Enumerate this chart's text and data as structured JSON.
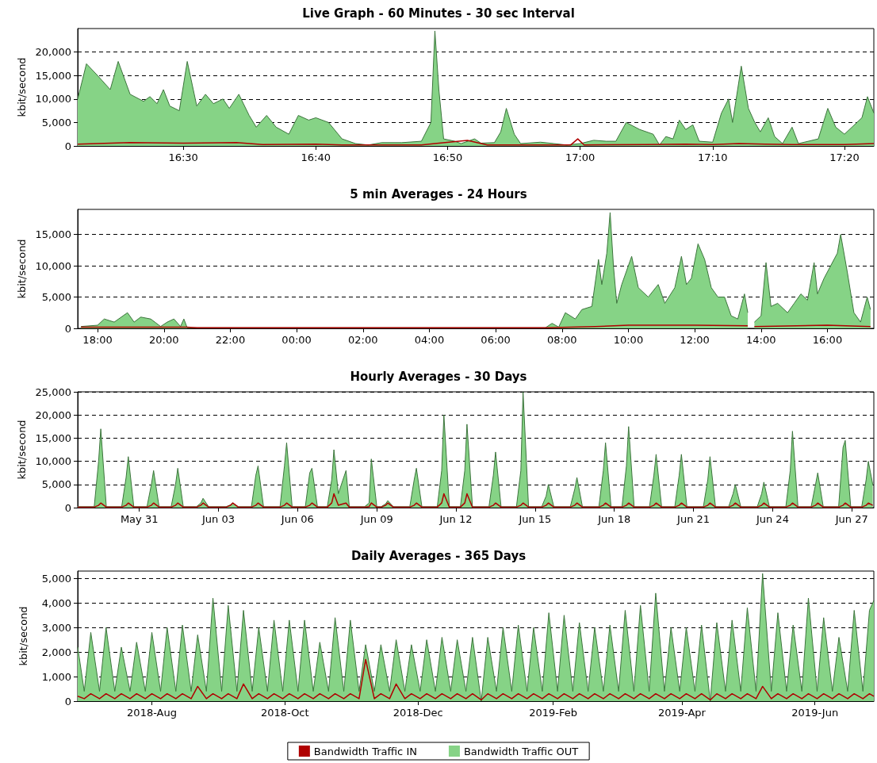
{
  "chart_data": [
    {
      "type": "area",
      "title": "Live Graph - 60 Minutes - 30 sec Interval",
      "ylabel": "kbit/second",
      "marker": "none",
      "grid": "y",
      "xlim": [
        16.367,
        17.37
      ],
      "xticks": [
        {
          "value": 16.5,
          "label": "16:30"
        },
        {
          "value": 16.667,
          "label": "16:40"
        },
        {
          "value": 16.833,
          "label": "16:50"
        },
        {
          "value": 17,
          "label": "17:00"
        },
        {
          "value": 17.167,
          "label": "17:10"
        },
        {
          "value": 17.333,
          "label": "17:20"
        }
      ],
      "ylim": [
        0,
        25000
      ],
      "yticks": [
        {
          "value": 0,
          "label": "0"
        },
        {
          "value": 5000,
          "label": "5,000"
        },
        {
          "value": 10000,
          "label": "10,000"
        },
        {
          "value": 15000,
          "label": "15,000"
        },
        {
          "value": 20000,
          "label": "20,000"
        }
      ],
      "series": [
        {
          "color": "#86d386",
          "x": [
            16.367,
            16.378,
            16.392,
            16.408,
            16.418,
            16.433,
            16.45,
            16.458,
            16.467,
            16.475,
            16.483,
            16.495,
            16.505,
            16.517,
            16.528,
            16.538,
            16.55,
            16.558,
            16.57,
            16.583,
            16.592,
            16.605,
            16.617,
            16.633,
            16.645,
            16.658,
            16.667,
            16.683,
            16.7,
            16.717,
            16.733,
            16.75,
            16.775,
            16.8,
            16.812,
            16.817,
            16.822,
            16.828,
            16.842,
            16.85,
            16.867,
            16.875,
            16.892,
            16.9,
            16.907,
            16.917,
            16.925,
            16.95,
            16.967,
            16.983,
            17.0,
            17.017,
            17.033,
            17.045,
            17.058,
            17.075,
            17.092,
            17.1,
            17.108,
            17.117,
            17.125,
            17.133,
            17.142,
            17.15,
            17.167,
            17.178,
            17.187,
            17.192,
            17.203,
            17.212,
            17.22,
            17.227,
            17.237,
            17.245,
            17.255,
            17.267,
            17.275,
            17.3,
            17.312,
            17.322,
            17.333,
            17.355,
            17.362,
            17.37
          ],
          "values": [
            10000,
            17500,
            15000,
            12000,
            18000,
            11000,
            9500,
            10500,
            9000,
            12000,
            8500,
            7500,
            18000,
            8500,
            11000,
            9000,
            10000,
            8000,
            11000,
            6500,
            4000,
            6500,
            4000,
            2500,
            6500,
            5500,
            6000,
            5000,
            1500,
            500,
            200,
            700,
            700,
            1000,
            5000,
            24500,
            12000,
            1500,
            1000,
            500,
            1500,
            600,
            700,
            3000,
            8000,
            2500,
            500,
            800,
            500,
            200,
            500,
            1200,
            1000,
            1000,
            5000,
            3500,
            2500,
            200,
            2000,
            1500,
            5500,
            3500,
            4500,
            1000,
            800,
            7000,
            10000,
            5000,
            17000,
            8000,
            5000,
            3000,
            6000,
            2000,
            500,
            4000,
            500,
            1500,
            8000,
            4000,
            2500,
            6000,
            10500,
            7000
          ]
        },
        {
          "type": "line",
          "color": "#b00000",
          "x": [
            16.367,
            16.433,
            16.5,
            16.567,
            16.6,
            16.667,
            16.7,
            16.8,
            16.817,
            16.858,
            16.883,
            16.988,
            16.997,
            17.005,
            17.083,
            17.133,
            17.167,
            17.2,
            17.233,
            17.267,
            17.333,
            17.37
          ],
          "values": [
            400,
            700,
            600,
            700,
            300,
            400,
            200,
            200,
            500,
            1200,
            200,
            200,
            1500,
            200,
            300,
            400,
            300,
            500,
            400,
            300,
            300,
            500
          ]
        }
      ]
    },
    {
      "type": "area",
      "title": "5 min Averages - 24 Hours",
      "ylabel": "kbit/second",
      "marker": "none",
      "grid": "y",
      "xlim": [
        "--06-26T17:24",
        "--06-27T17:24"
      ],
      "xticks": [
        {
          "value": "--06-26T18:00",
          "label": "18:00"
        },
        {
          "value": "--06-26T20:00",
          "label": "20:00"
        },
        {
          "value": "--06-26T22:00",
          "label": "22:00"
        },
        {
          "value": "--06-27T00:00",
          "label": "00:00"
        },
        {
          "value": "--06-27T02:00",
          "label": "02:00"
        },
        {
          "value": "--06-27T04:00",
          "label": "04:00"
        },
        {
          "value": "--06-27T06:00",
          "label": "06:00"
        },
        {
          "value": "--06-27T08:00",
          "label": "08:00"
        },
        {
          "value": "--06-27T10:00",
          "label": "10:00"
        },
        {
          "value": "--06-27T12:00",
          "label": "12:00"
        },
        {
          "value": "--06-27T14:00",
          "label": "14:00"
        },
        {
          "value": "--06-27T16:00",
          "label": "16:00"
        }
      ],
      "ylim": [
        0,
        19000
      ],
      "yticks": [
        {
          "value": 0,
          "label": "0"
        },
        {
          "value": 5000,
          "label": "5,000"
        },
        {
          "value": 10000,
          "label": "10,000"
        },
        {
          "value": 15000,
          "label": "15,000"
        }
      ],
      "series": [
        {
          "color": "#86d386",
          "x": [
            "--06-26T17:30",
            "--06-26T18:00",
            "--06-26T18:12",
            "--06-26T18:30",
            "--06-26T18:54",
            "--06-26T19:06",
            "--06-26T19:18",
            "--06-26T19:36",
            "--06-26T19:54",
            "--06-26T20:06",
            "--06-26T20:18",
            "--06-26T20:30",
            "--06-26T20:36",
            "--06-26T20:42",
            "--06-26T22:00",
            "--06-27T02:00",
            "--06-27T06:00",
            "--06-27T07:30",
            "--06-27T07:42",
            "--06-27T07:54",
            "--06-27T08:06",
            "--06-27T08:24",
            "--06-27T08:36",
            "--06-27T08:54",
            "--06-27T09:06",
            "--06-27T09:12",
            "--06-27T09:21",
            "--06-27T09:27",
            "--06-27T09:33",
            "--06-27T09:39",
            "--06-27T09:48",
            "--06-27T10:06",
            "--06-27T10:18",
            "--06-27T10:36",
            "--06-27T10:54",
            "--06-27T11:06",
            "--06-27T11:24",
            "--06-27T11:36",
            "--06-27T11:45",
            "--06-27T11:54",
            "--06-27T12:06",
            "--06-27T12:18",
            "--06-27T12:30",
            "--06-27T12:42",
            "--06-27T12:54",
            "--06-27T13:06",
            "--06-27T13:18",
            "--06-27T13:30",
            "--06-27T13:36",
            "--06-27T13:39",
            "--06-27T13:48",
            "--06-27T14:00",
            "--06-27T14:09",
            "--06-27T14:18",
            "--06-27T14:30",
            "--06-27T14:48",
            "--06-27T15:00",
            "--06-27T15:12",
            "--06-27T15:24",
            "--06-27T15:36",
            "--06-27T15:42",
            "--06-27T15:54",
            "--06-27T16:06",
            "--06-27T16:18",
            "--06-27T16:24",
            "--06-27T16:36",
            "--06-27T16:48",
            "--06-27T17:00",
            "--06-27T17:12",
            "--06-27T17:18"
          ],
          "values": [
            300,
            500,
            1500,
            1000,
            2500,
            1000,
            1800,
            1500,
            300,
            1000,
            1500,
            300,
            1500,
            100,
            100,
            100,
            100,
            100,
            800,
            200,
            2500,
            1500,
            3000,
            3500,
            11000,
            7000,
            12000,
            18500,
            10000,
            4000,
            7000,
            11500,
            6500,
            5000,
            7000,
            4000,
            6500,
            11500,
            7000,
            8000,
            13500,
            11000,
            6500,
            5000,
            5000,
            2000,
            1500,
            5500,
            2500,
            null,
            1000,
            2000,
            10500,
            3500,
            4000,
            2500,
            4000,
            5500,
            4500,
            10500,
            5500,
            8000,
            10000,
            12000,
            15000,
            9000,
            2500,
            1000,
            5000,
            3000
          ]
        },
        {
          "type": "line",
          "color": "#b00000",
          "x": [
            "--06-26T17:30",
            "--06-26T20:42",
            "--06-26T21:00",
            "--06-27T07:30",
            "--06-27T09:00",
            "--06-27T10:00",
            "--06-27T12:00",
            "--06-27T13:36",
            "--06-27T13:39",
            "--06-27T13:48",
            "--06-27T16:00",
            "--06-27T17:18"
          ],
          "values": [
            200,
            200,
            100,
            100,
            300,
            500,
            500,
            400,
            null,
            300,
            500,
            300
          ]
        }
      ]
    },
    {
      "type": "area",
      "title": "Hourly Averages - 30 Days",
      "ylabel": "kbit/second",
      "marker": "none",
      "grid": "y",
      "xlim": [
        "--05-28T16:00",
        "--06-27T20:00"
      ],
      "xticks": [
        {
          "value": "--05-31",
          "label": "May 31"
        },
        {
          "value": "--06-03",
          "label": "Jun 03"
        },
        {
          "value": "--06-06",
          "label": "Jun 06"
        },
        {
          "value": "--06-09",
          "label": "Jun 09"
        },
        {
          "value": "--06-12",
          "label": "Jun 12"
        },
        {
          "value": "--06-15",
          "label": "Jun 15"
        },
        {
          "value": "--06-18",
          "label": "Jun 18"
        },
        {
          "value": "--06-21",
          "label": "Jun 21"
        },
        {
          "value": "--06-24",
          "label": "Jun 24"
        },
        {
          "value": "--06-27",
          "label": "Jun 27"
        }
      ],
      "ylim": [
        0,
        25000
      ],
      "yticks": [
        {
          "value": 0,
          "label": "0"
        },
        {
          "value": 5000,
          "label": "5,000"
        },
        {
          "value": 10000,
          "label": "10,000"
        },
        {
          "value": 15000,
          "label": "15,000"
        },
        {
          "value": 20000,
          "label": "20,000"
        },
        {
          "value": 25000,
          "label": "25,000"
        }
      ],
      "x": [
        "--05-28T16:00",
        "--05-29T07:00",
        "--05-29T11:00",
        "--05-29T13:00",
        "--05-29T18:00",
        "--05-30T08:00",
        "--05-30T12:00",
        "--05-30T14:00",
        "--05-30T19:00",
        "--05-31T07:00",
        "--05-31T11:00",
        "--05-31T13:00",
        "--05-31T18:00",
        "--06-01T05:00",
        "--06-01T09:00",
        "--06-01T11:00",
        "--06-01T16:00",
        "--06-02T04:00",
        "--06-02T08:00",
        "--06-02T10:00",
        "--06-02T15:00",
        "--06-03T07:00",
        "--06-03T11:00",
        "--06-03T13:00",
        "--06-03T18:00",
        "--06-04T06:00",
        "--06-04T10:00",
        "--06-04T12:00",
        "--06-04T17:00",
        "--06-05T08:00",
        "--06-05T12:00",
        "--06-05T14:00",
        "--06-05T19:00",
        "--06-06T07:00",
        "--06-06T11:00",
        "--06-06T13:00",
        "--06-06T18:00",
        "--06-07T03:00",
        "--06-07T07:00",
        "--06-07T09:00",
        "--06-07T13:00",
        "--06-07T20:00",
        "--06-07T23:00",
        "--06-08T13:00",
        "--06-08T17:00",
        "--06-08T19:00",
        "--06-09T00:00",
        "--06-09T04:00",
        "--06-09T08:00",
        "--06-09T10:00",
        "--06-09T15:00",
        "--06-10T06:00",
        "--06-10T10:00",
        "--06-10T12:00",
        "--06-10T17:00",
        "--06-11T07:00",
        "--06-11T11:00",
        "--06-11T13:00",
        "--06-11T18:00",
        "--06-12T04:00",
        "--06-12T08:00",
        "--06-12T10:00",
        "--06-12T15:00",
        "--06-13T06:00",
        "--06-13T10:00",
        "--06-13T12:00",
        "--06-13T17:00",
        "--06-14T07:00",
        "--06-14T11:00",
        "--06-14T13:00",
        "--06-14T18:00",
        "--06-15T06:00",
        "--06-15T10:00",
        "--06-15T12:00",
        "--06-15T17:00",
        "--06-16T08:00",
        "--06-16T12:00",
        "--06-16T14:00",
        "--06-16T19:00",
        "--06-17T10:00",
        "--06-17T14:00",
        "--06-17T16:00",
        "--06-17T21:00",
        "--06-18T07:00",
        "--06-18T11:00",
        "--06-18T13:00",
        "--06-18T18:00",
        "--06-19T08:00",
        "--06-19T12:00",
        "--06-19T14:00",
        "--06-19T19:00",
        "--06-20T07:00",
        "--06-20T11:00",
        "--06-20T13:00",
        "--06-20T18:00",
        "--06-21T09:00",
        "--06-21T13:00",
        "--06-21T15:00",
        "--06-21T20:00",
        "--06-22T08:00",
        "--06-22T12:00",
        "--06-22T14:00",
        "--06-22T19:00",
        "--06-23T10:00",
        "--06-23T14:00",
        "--06-23T16:00",
        "--06-23T21:00",
        "--06-24T12:00",
        "--06-24T16:00",
        "--06-24T18:00",
        "--06-24T23:00",
        "--06-25T11:00",
        "--06-25T15:00",
        "--06-25T17:00",
        "--06-25T22:00",
        "--06-26T12:00",
        "--06-26T16:00",
        "--06-26T18:00",
        "--06-26T23:00",
        "--06-27T09:00",
        "--06-27T13:00",
        "--06-27T15:00",
        "--06-27T19:00"
      ],
      "series": [
        {
          "color": "#86d386",
          "values": [
            200,
            200,
            10000,
            17000,
            200,
            200,
            6500,
            11000,
            200,
            200,
            5000,
            8000,
            200,
            200,
            5000,
            8500,
            200,
            200,
            1000,
            2000,
            200,
            200,
            600,
            1000,
            200,
            200,
            7000,
            9000,
            200,
            200,
            9000,
            14000,
            200,
            200,
            7500,
            8500,
            200,
            200,
            6000,
            12500,
            3000,
            8000,
            200,
            200,
            1000,
            10500,
            200,
            200,
            800,
            1500,
            200,
            200,
            6000,
            8500,
            200,
            200,
            8000,
            20000,
            200,
            200,
            8000,
            18000,
            200,
            200,
            7000,
            12000,
            200,
            200,
            8000,
            25000,
            200,
            200,
            2500,
            5000,
            200,
            200,
            4000,
            6500,
            200,
            200,
            8000,
            14000,
            200,
            200,
            9000,
            17500,
            200,
            200,
            7000,
            11500,
            200,
            200,
            7000,
            11500,
            200,
            200,
            6000,
            11000,
            200,
            200,
            3000,
            5000,
            200,
            200,
            3000,
            5500,
            200,
            200,
            8000,
            16500,
            200,
            200,
            5000,
            7500,
            200,
            200,
            13000,
            14500,
            200,
            200,
            6000,
            10000,
            5000
          ]
        },
        {
          "type": "line",
          "color": "#b00000",
          "values": [
            100,
            100,
            500,
            1000,
            100,
            100,
            500,
            1000,
            100,
            100,
            500,
            1000,
            100,
            100,
            500,
            1000,
            100,
            100,
            500,
            1000,
            100,
            100,
            500,
            1000,
            100,
            100,
            500,
            1000,
            100,
            100,
            500,
            1000,
            100,
            100,
            500,
            1000,
            100,
            100,
            1000,
            3000,
            500,
            1000,
            100,
            100,
            200,
            1000,
            100,
            100,
            500,
            1000,
            100,
            100,
            500,
            1000,
            100,
            100,
            1000,
            3000,
            100,
            100,
            1000,
            3000,
            100,
            100,
            500,
            1000,
            100,
            100,
            500,
            1000,
            100,
            100,
            500,
            1000,
            100,
            100,
            500,
            1000,
            100,
            100,
            500,
            1000,
            100,
            100,
            500,
            1000,
            100,
            100,
            500,
            1000,
            100,
            100,
            500,
            1000,
            100,
            100,
            500,
            1000,
            100,
            100,
            500,
            1000,
            100,
            100,
            500,
            1000,
            100,
            100,
            500,
            1000,
            100,
            100,
            500,
            1000,
            100,
            100,
            500,
            1000,
            100,
            100,
            500,
            1000,
            500
          ]
        }
      ]
    },
    {
      "type": "area",
      "title": "Daily Averages - 365 Days",
      "ylabel": "kbit/second",
      "marker": "none",
      "grid": "y",
      "legend": "bottom",
      "xlim": [
        "2018-06-28",
        "2019-06-28"
      ],
      "xticks": [
        {
          "value": "2018-08",
          "label": "2018-Aug"
        },
        {
          "value": "2018-10",
          "label": "2018-Oct"
        },
        {
          "value": "2018-12",
          "label": "2018-Dec"
        },
        {
          "value": "2019-02",
          "label": "2019-Feb"
        },
        {
          "value": "2019-04",
          "label": "2019-Apr"
        },
        {
          "value": "2019-06",
          "label": "2019-Jun"
        }
      ],
      "ylim": [
        0,
        5300
      ],
      "yticks": [
        {
          "value": 0,
          "label": "0"
        },
        {
          "value": 1000,
          "label": "1,000"
        },
        {
          "value": 2000,
          "label": "2,000"
        },
        {
          "value": 3000,
          "label": "3,000"
        },
        {
          "value": 4000,
          "label": "4,000"
        },
        {
          "value": 5000,
          "label": "5,000"
        }
      ],
      "x": [
        "2018-06-28",
        "2018-07-01",
        "2018-07-04",
        "2018-07-08",
        "2018-07-11",
        "2018-07-15",
        "2018-07-18",
        "2018-07-22",
        "2018-07-25",
        "2018-07-29",
        "2018-08-01",
        "2018-08-05",
        "2018-08-08",
        "2018-08-12",
        "2018-08-15",
        "2018-08-19",
        "2018-08-22",
        "2018-08-26",
        "2018-08-29",
        "2018-09-02",
        "2018-09-05",
        "2018-09-09",
        "2018-09-12",
        "2018-09-16",
        "2018-09-19",
        "2018-09-23",
        "2018-09-26",
        "2018-09-30",
        "2018-10-03",
        "2018-10-07",
        "2018-10-10",
        "2018-10-14",
        "2018-10-17",
        "2018-10-21",
        "2018-10-24",
        "2018-10-28",
        "2018-10-31",
        "2018-11-04",
        "2018-11-07",
        "2018-11-11",
        "2018-11-14",
        "2018-11-18",
        "2018-11-21",
        "2018-11-25",
        "2018-11-28",
        "2018-12-02",
        "2018-12-05",
        "2018-12-09",
        "2018-12-12",
        "2018-12-16",
        "2018-12-19",
        "2018-12-23",
        "2018-12-26",
        "2018-12-30",
        "2019-01-02",
        "2019-01-06",
        "2019-01-09",
        "2019-01-13",
        "2019-01-16",
        "2019-01-20",
        "2019-01-23",
        "2019-01-27",
        "2019-01-30",
        "2019-02-03",
        "2019-02-06",
        "2019-02-10",
        "2019-02-13",
        "2019-02-17",
        "2019-02-20",
        "2019-02-24",
        "2019-02-27",
        "2019-03-03",
        "2019-03-06",
        "2019-03-10",
        "2019-03-13",
        "2019-03-17",
        "2019-03-20",
        "2019-03-24",
        "2019-03-27",
        "2019-03-31",
        "2019-04-03",
        "2019-04-07",
        "2019-04-10",
        "2019-04-14",
        "2019-04-17",
        "2019-04-21",
        "2019-04-24",
        "2019-04-28",
        "2019-05-01",
        "2019-05-05",
        "2019-05-08",
        "2019-05-12",
        "2019-05-15",
        "2019-05-19",
        "2019-05-22",
        "2019-05-26",
        "2019-05-29",
        "2019-06-02",
        "2019-06-05",
        "2019-06-09",
        "2019-06-12",
        "2019-06-16",
        "2019-06-19",
        "2019-06-23",
        "2019-06-26",
        "2019-06-28"
      ],
      "series": [
        {
          "type": "line",
          "name": "Bandwidth Traffic IN",
          "color": "#b00000",
          "values": [
            200,
            100,
            300,
            100,
            300,
            100,
            300,
            100,
            300,
            100,
            300,
            100,
            300,
            100,
            300,
            100,
            600,
            100,
            300,
            100,
            300,
            100,
            700,
            100,
            300,
            100,
            300,
            100,
            300,
            100,
            300,
            100,
            300,
            100,
            300,
            100,
            300,
            100,
            1700,
            100,
            300,
            100,
            700,
            100,
            300,
            100,
            300,
            100,
            300,
            100,
            300,
            100,
            300,
            50,
            300,
            100,
            300,
            100,
            300,
            100,
            300,
            100,
            300,
            100,
            300,
            100,
            300,
            100,
            300,
            100,
            300,
            100,
            300,
            100,
            300,
            100,
            300,
            100,
            300,
            100,
            300,
            100,
            300,
            50,
            300,
            100,
            300,
            100,
            300,
            100,
            600,
            100,
            300,
            100,
            300,
            100,
            300,
            100,
            300,
            100,
            300,
            100,
            300,
            100,
            300,
            200
          ]
        },
        {
          "name": "Bandwidth Traffic OUT",
          "color": "#86d386",
          "values": [
            2200,
            400,
            2800,
            400,
            3000,
            400,
            2200,
            400,
            2400,
            400,
            2800,
            400,
            3000,
            400,
            3100,
            400,
            2700,
            400,
            4200,
            400,
            3900,
            400,
            3700,
            400,
            3000,
            400,
            3300,
            400,
            3300,
            400,
            3300,
            400,
            2400,
            400,
            3400,
            400,
            3300,
            400,
            2300,
            400,
            2300,
            400,
            2500,
            400,
            2300,
            400,
            2500,
            400,
            2600,
            400,
            2500,
            400,
            2600,
            0,
            2600,
            400,
            3000,
            400,
            3100,
            400,
            3000,
            400,
            3600,
            400,
            3500,
            400,
            3200,
            400,
            3000,
            400,
            3100,
            400,
            3700,
            400,
            3900,
            400,
            4400,
            400,
            3000,
            400,
            3000,
            400,
            3100,
            0,
            3200,
            400,
            3300,
            400,
            3800,
            400,
            5200,
            400,
            3600,
            400,
            3100,
            400,
            4200,
            400,
            3400,
            400,
            2600,
            400,
            3700,
            400,
            3700,
            4100
          ]
        }
      ]
    }
  ]
}
